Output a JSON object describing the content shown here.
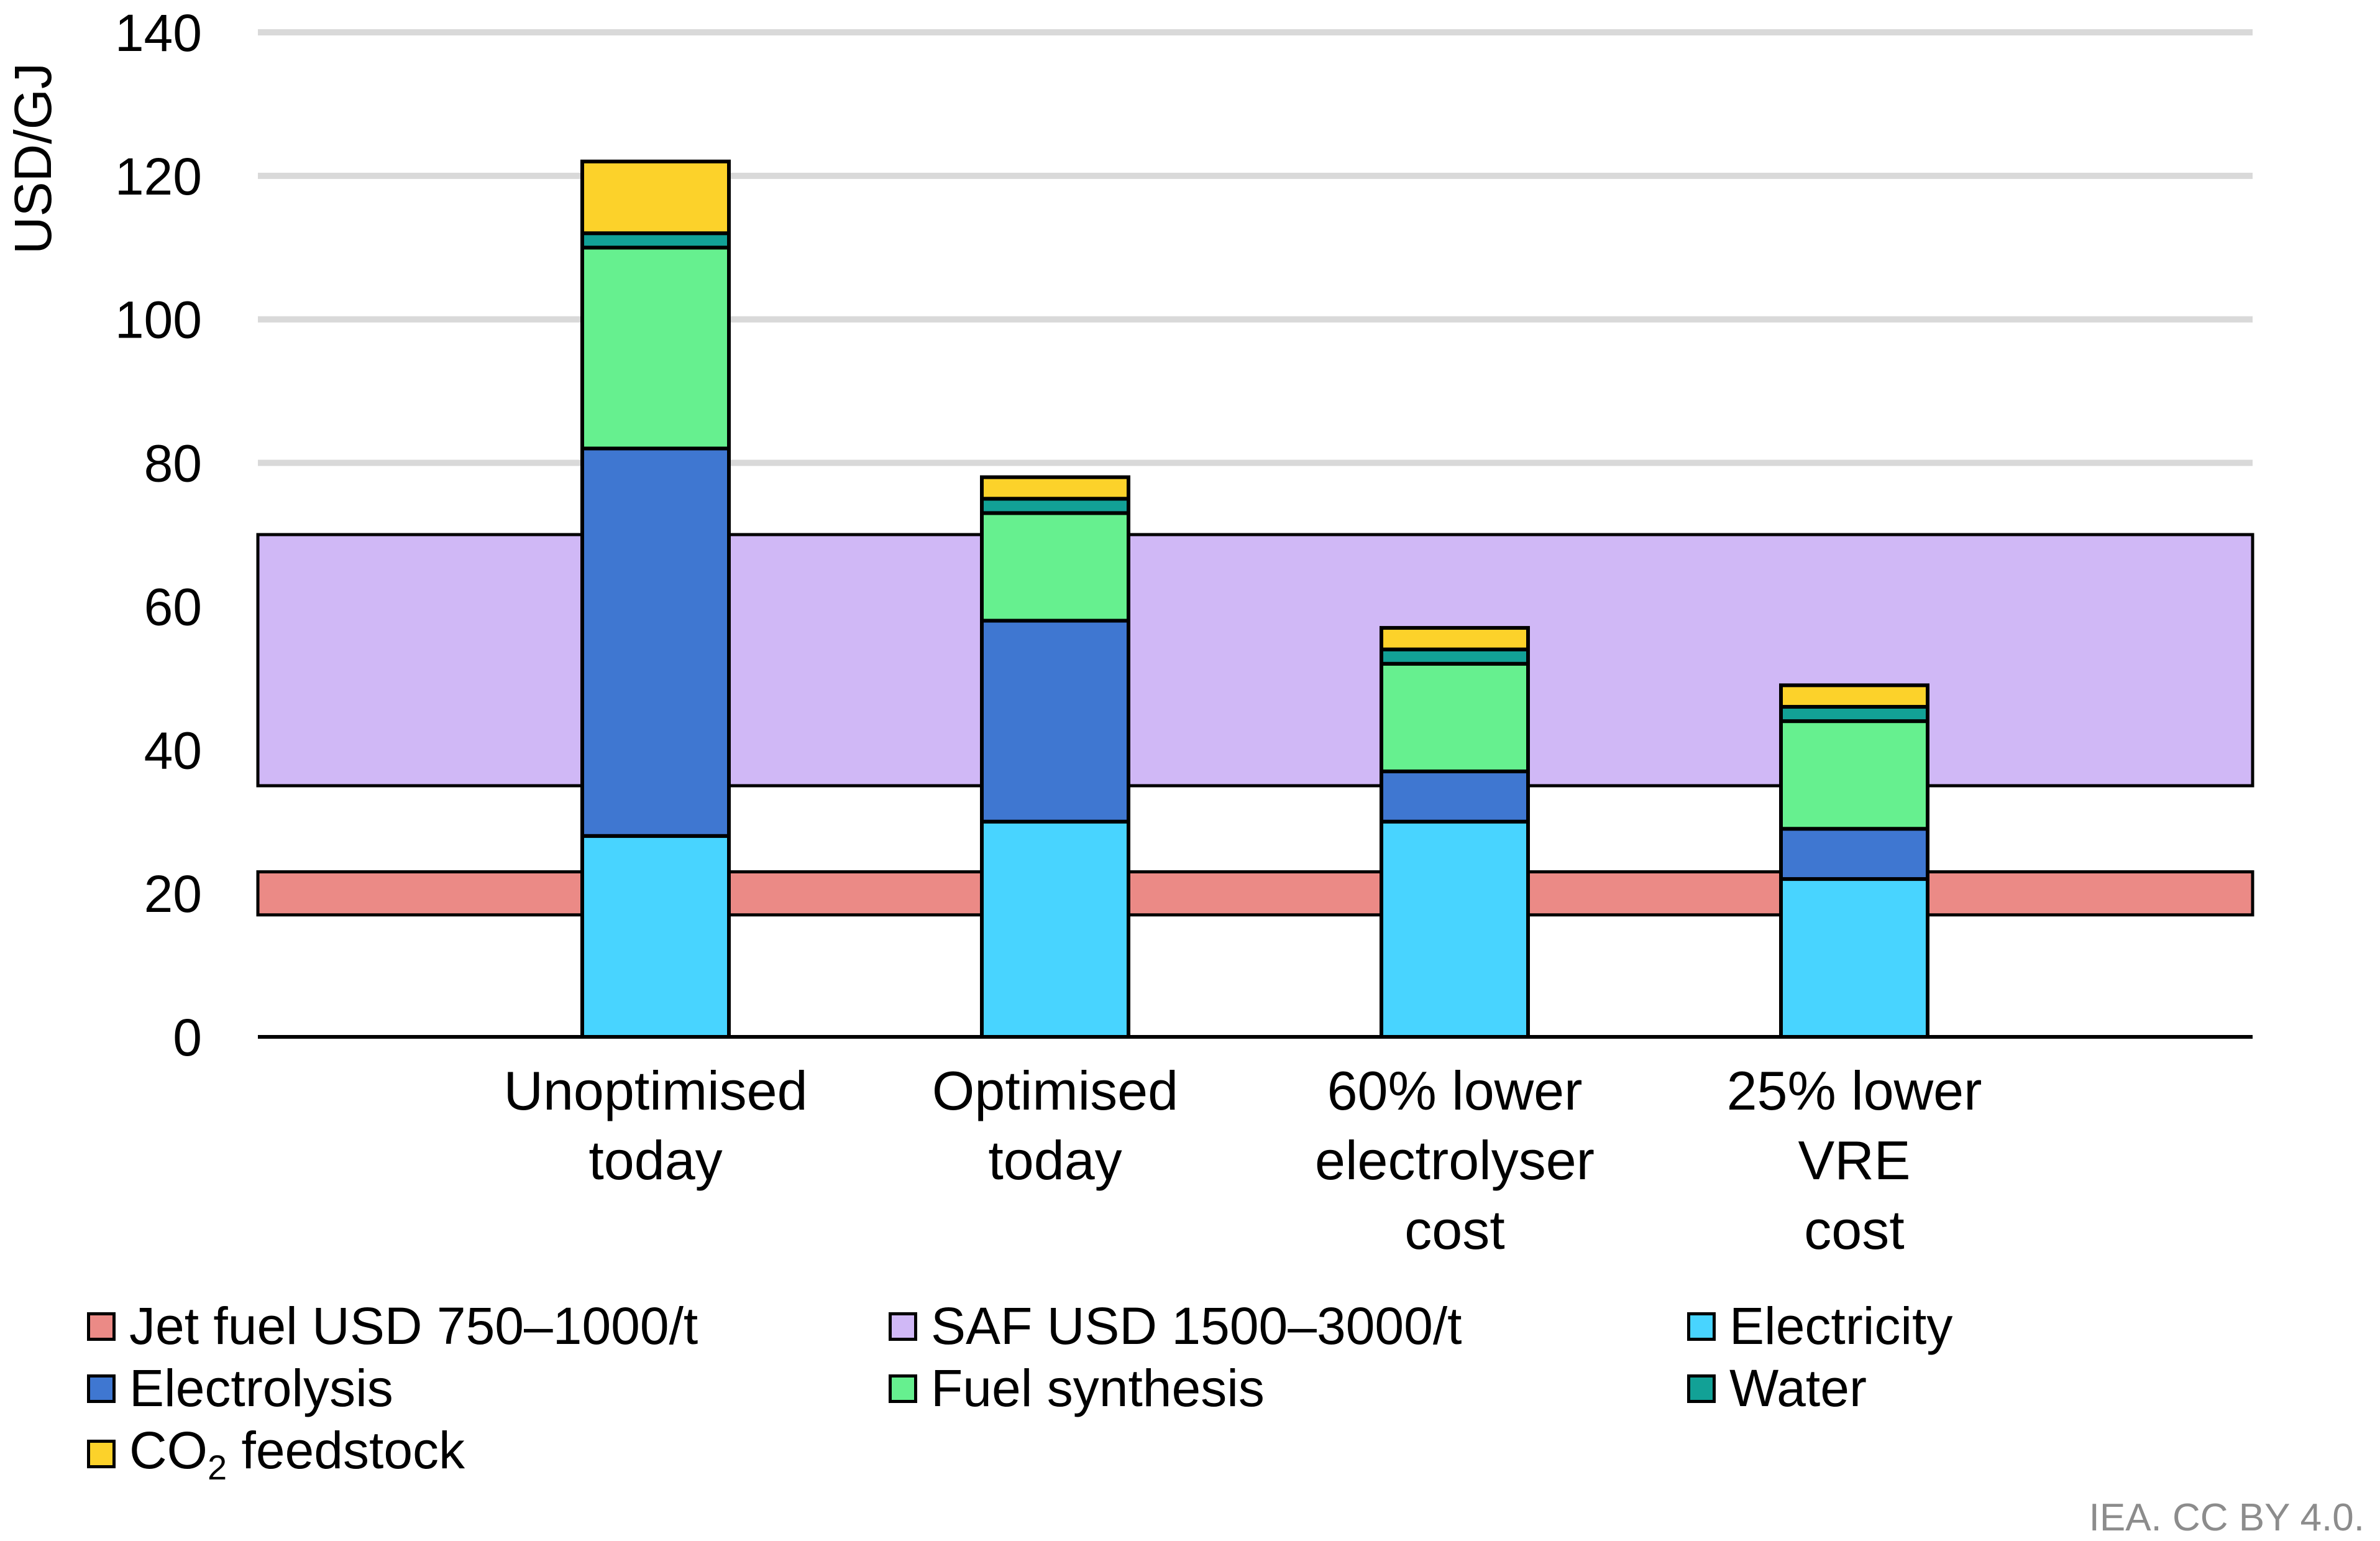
{
  "chart_data": {
    "type": "bar",
    "stacked": true,
    "ylabel": "USD/GJ",
    "ylim": [
      0,
      140
    ],
    "yticks": [
      0,
      20,
      40,
      60,
      80,
      100,
      120,
      140
    ],
    "grid": true,
    "categories": [
      [
        "Unoptimised",
        "today"
      ],
      [
        "Optimised",
        "today"
      ],
      [
        "60% lower",
        "electrolyser",
        "cost"
      ],
      [
        "25% lower",
        "VRE",
        "cost"
      ]
    ],
    "series": [
      {
        "name": "Electricity",
        "color": "#48d4ff",
        "values": [
          28,
          30,
          30,
          22
        ]
      },
      {
        "name": "Electrolysis",
        "color": "#3f77d1",
        "values": [
          54,
          28,
          7,
          7
        ]
      },
      {
        "name": "Fuel synthesis",
        "color": "#66f08f",
        "values": [
          28,
          15,
          15,
          15
        ]
      },
      {
        "name": "Water",
        "color": "#12a196",
        "values": [
          2,
          2,
          2,
          2
        ]
      },
      {
        "name": "CO2 feedstock",
        "color": "#fcd22a",
        "values": [
          10,
          3,
          3,
          3
        ]
      }
    ],
    "bands": [
      {
        "name": "Jet fuel USD 750–1000/t",
        "color": "#eb8a86",
        "range": [
          17,
          23
        ]
      },
      {
        "name": "SAF USD 1500–3000/t",
        "color": "#d0b8f6",
        "range": [
          35,
          70
        ]
      }
    ],
    "legend": {
      "position": "bottom",
      "order": [
        "Jet fuel USD 750–1000/t",
        "SAF USD 1500–3000/t",
        "Electricity",
        "Electrolysis",
        "Fuel synthesis",
        "Water",
        "CO2 feedstock"
      ],
      "items": {
        "jet_fuel": "Jet fuel USD 750–1000/t",
        "saf": "SAF USD 1500–3000/t",
        "electricity": "Electricity",
        "electrolysis": "Electrolysis",
        "fuel_synthesis": "Fuel synthesis",
        "water": "Water",
        "co2_main": "CO",
        "co2_sub": "2",
        "co2_rest": " feedstock"
      }
    }
  },
  "credit": "IEA. CC BY 4.0."
}
